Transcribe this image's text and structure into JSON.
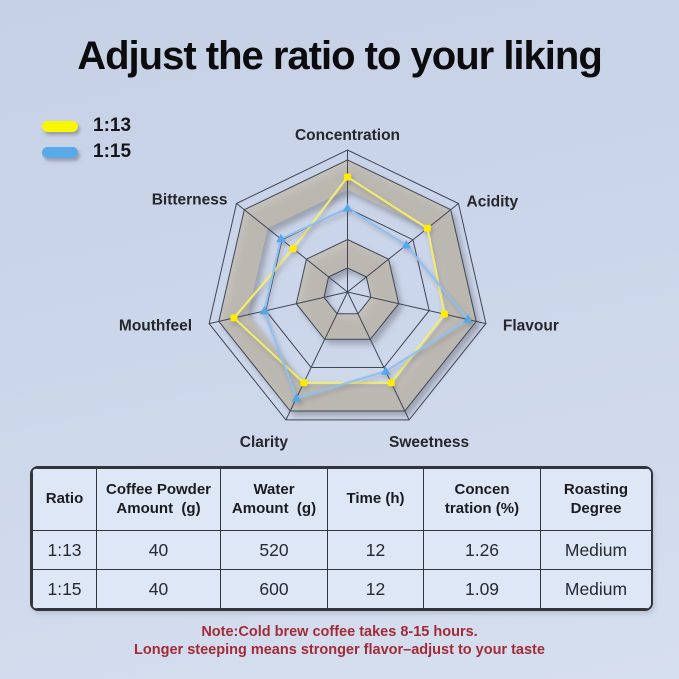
{
  "title": "Adjust the ratio to your liking",
  "legend": {
    "items": [
      {
        "label": "1:13",
        "color": "#f8f600"
      },
      {
        "label": "1:15",
        "color": "#59a8e9"
      }
    ]
  },
  "chart_data": {
    "type": "radar",
    "title": "",
    "categories": [
      "Concentration",
      "Acidity",
      "Flavour",
      "Sweetness",
      "Clarity",
      "Mouthfeel",
      "Bitterness"
    ],
    "scale_max": 10,
    "series": [
      {
        "name": "1:13",
        "values": [
          8.1,
          7.2,
          7.0,
          7.1,
          7.1,
          8.2,
          4.9
        ],
        "line_color": "#f2ee6e",
        "marker_color": "#ffec00",
        "marker": "square"
      },
      {
        "name": "1:15",
        "values": [
          5.9,
          5.3,
          8.7,
          6.2,
          8.3,
          6.0,
          6.0
        ],
        "line_color": "#8fc0ef",
        "marker_color": "#54a7e9",
        "marker": "triangle"
      }
    ],
    "grid_rings": [
      10,
      9.3,
      5.9,
      3.7,
      1.7
    ],
    "grid_color": "#3f4656",
    "band_color": "#c2bcb1",
    "band_outer": [
      7.2,
      9.3
    ],
    "band_inner": [
      1.7,
      3.7
    ],
    "label_color": "#26262b",
    "legend_position": "top-left"
  },
  "table": {
    "headers": [
      "Ratio",
      "Coffee Powder\nAmount  (g)",
      "Water\nAmount  (g)",
      "Time (h)",
      "Concen\ntration (%)",
      "Roasting\nDegree"
    ],
    "rows": [
      [
        "1:13",
        "40",
        "520",
        "12",
        "1.26",
        "Medium"
      ],
      [
        "1:15",
        "40",
        "600",
        "12",
        "1.09",
        "Medium"
      ]
    ]
  },
  "note": {
    "line1": "Note:Cold brew coffee takes 8-15 hours.",
    "line2": "Longer steeping means stronger flavor–adjust to your taste"
  }
}
